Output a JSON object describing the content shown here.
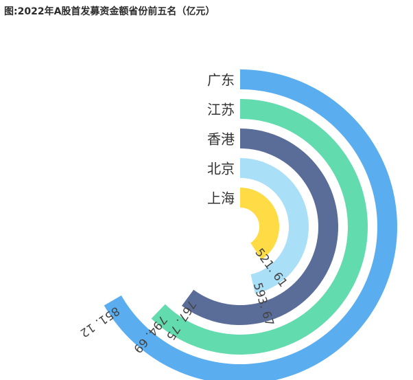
{
  "page": {
    "title": "图:2022年A股首发募资金额省份前五名（亿元）"
  },
  "chart_data": {
    "type": "radial-bar",
    "title": "图:2022年A股首发募资金额省份前五名（亿元）",
    "unit": "亿元",
    "series": [
      {
        "category": "广东",
        "value": 851.12,
        "display": "851. 12",
        "color": "#5aaef0"
      },
      {
        "category": "江苏",
        "value": 794.69,
        "display": "794. 69",
        "color": "#62dbae"
      },
      {
        "category": "香港",
        "value": 767.75,
        "display": "767. 75",
        "color": "#5a6d98"
      },
      {
        "category": "北京",
        "value": 593.67,
        "display": "593. 67",
        "color": "#aadff8"
      },
      {
        "category": "上海",
        "value": 521.61,
        "display": "521. 61",
        "color": "#ffdc45"
      }
    ],
    "max_value": 851.12,
    "legend": "none",
    "grid": false
  }
}
